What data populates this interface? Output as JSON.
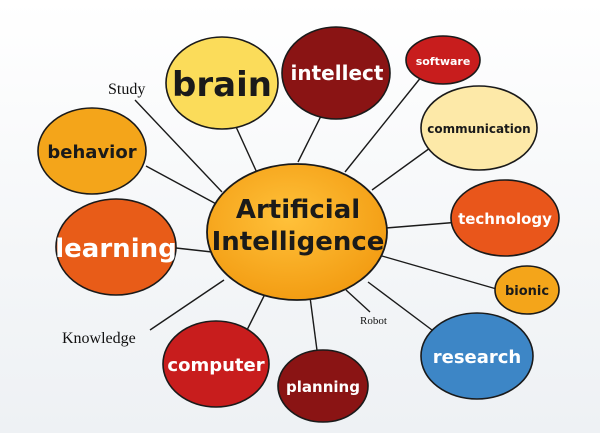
{
  "diagram": {
    "center": {
      "line1": "Artificial",
      "line2": "Intelligence",
      "color": "#f5a315"
    },
    "nodes": [
      {
        "id": "brain",
        "label": "brain",
        "fill": "#fbdc5a",
        "text": "dark"
      },
      {
        "id": "intellect",
        "label": "intellect",
        "fill": "#8a1414",
        "text": "light"
      },
      {
        "id": "software",
        "label": "software",
        "fill": "#c81d1d",
        "text": "light"
      },
      {
        "id": "communication",
        "label": "communication",
        "fill": "#fde9a8",
        "text": "dark"
      },
      {
        "id": "technology",
        "label": "technology",
        "fill": "#e9561b",
        "text": "light"
      },
      {
        "id": "bionic",
        "label": "bionic",
        "fill": "#f4a51a",
        "text": "dark"
      },
      {
        "id": "research",
        "label": "research",
        "fill": "#3d86c6",
        "text": "light"
      },
      {
        "id": "planning",
        "label": "planning",
        "fill": "#8a1414",
        "text": "light"
      },
      {
        "id": "computer",
        "label": "computer",
        "fill": "#c81d1d",
        "text": "light"
      },
      {
        "id": "learning",
        "label": "learning",
        "fill": "#e85c18",
        "text": "light"
      },
      {
        "id": "behavior",
        "label": "behavior",
        "fill": "#f4a51a",
        "text": "dark"
      }
    ],
    "annotations": {
      "study": "Study",
      "knowledge": "Knowledge",
      "robot": "Robot"
    },
    "line_color": "#1a1a1a"
  }
}
